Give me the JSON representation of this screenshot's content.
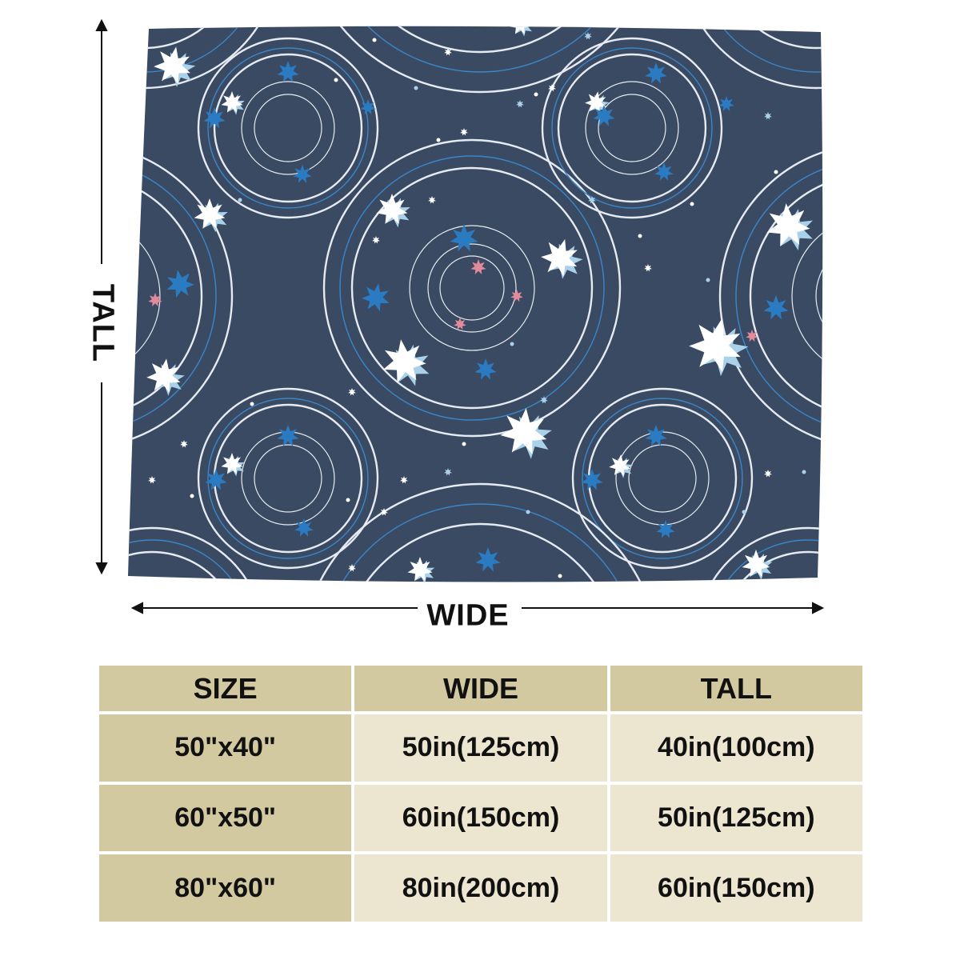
{
  "dimension_labels": {
    "tall": "TALL",
    "wide": "WIDE"
  },
  "colors": {
    "blanket": "#3a4a63",
    "ring": "#e6ebf2",
    "ring_blue": "#3a86c8",
    "star_white": "#ffffff",
    "star_light_blue": "#a9d2ea",
    "star_blue": "#2b7bc2",
    "star_pink": "#e08a9a",
    "table_header": "#d2c9a1",
    "table_cell": "#ece6d0"
  },
  "table": {
    "headers": [
      "SIZE",
      "WIDE",
      "TALL"
    ],
    "rows": [
      {
        "size": "50\"x40\"",
        "wide": "50in(125cm)",
        "tall": "40in(100cm)"
      },
      {
        "size": "60\"x50\"",
        "wide": "60in(150cm)",
        "tall": "50in(125cm)"
      },
      {
        "size": "80\"x60\"",
        "wide": "80in(200cm)",
        "tall": "60in(150cm)"
      }
    ]
  }
}
